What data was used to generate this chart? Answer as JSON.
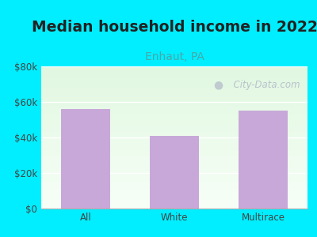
{
  "title": "Median household income in 2022",
  "subtitle": "Enhaut, PA",
  "categories": [
    "All",
    "White",
    "Multirace"
  ],
  "values": [
    56000,
    41000,
    55000
  ],
  "bar_color": "#c8a8d8",
  "title_fontsize": 13.5,
  "subtitle_fontsize": 10,
  "subtitle_color": "#44aaaa",
  "tick_label_fontsize": 8.5,
  "ylim": [
    0,
    80000
  ],
  "yticks": [
    0,
    20000,
    40000,
    60000,
    80000
  ],
  "ytick_labels": [
    "$0",
    "$20k",
    "$40k",
    "$60k",
    "$80k"
  ],
  "background_outer": "#00eeff",
  "watermark": "  City-Data.com",
  "watermark_icon": "●"
}
